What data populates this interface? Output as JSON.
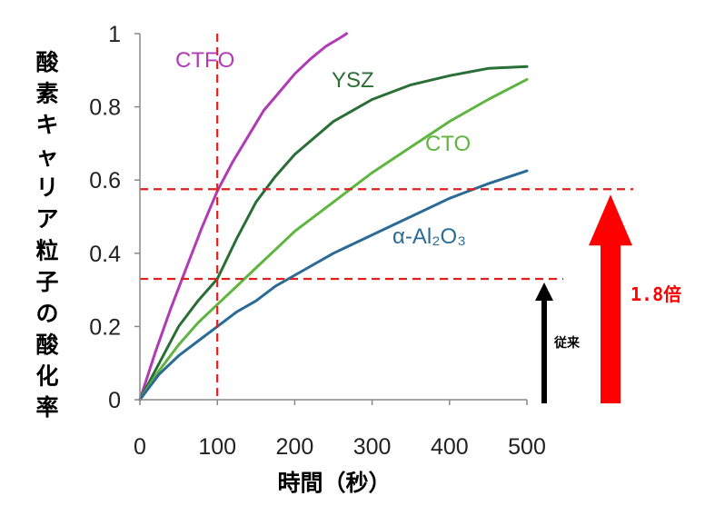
{
  "chart_data": {
    "type": "line",
    "xlabel": "時間（秒）",
    "ylabel": "酸素キャリア粒子の酸化率",
    "xlim": [
      0,
      500
    ],
    "ylim": [
      0,
      1
    ],
    "xticks": [
      "0",
      "100",
      "200",
      "300",
      "400",
      "500"
    ],
    "yticks": [
      "0",
      "0.2",
      "0.4",
      "0.6",
      "0.8",
      "1"
    ],
    "grid": false,
    "series": [
      {
        "name": "CTFO",
        "color": "#b03bb5",
        "x": [
          0,
          20,
          40,
          60,
          80,
          100,
          120,
          140,
          160,
          180,
          200,
          220,
          240,
          260,
          267
        ],
        "y": [
          0,
          0.13,
          0.25,
          0.36,
          0.47,
          0.57,
          0.65,
          0.72,
          0.79,
          0.84,
          0.89,
          0.93,
          0.965,
          0.99,
          1.0
        ]
      },
      {
        "name": "YSZ",
        "color": "#2a6e36",
        "x": [
          0,
          25,
          50,
          75,
          100,
          125,
          150,
          175,
          200,
          250,
          300,
          350,
          400,
          450,
          500
        ],
        "y": [
          0,
          0.1,
          0.2,
          0.27,
          0.33,
          0.44,
          0.54,
          0.61,
          0.67,
          0.76,
          0.82,
          0.86,
          0.885,
          0.905,
          0.91
        ]
      },
      {
        "name": "CTO",
        "color": "#5fb540",
        "x": [
          0,
          25,
          50,
          75,
          100,
          125,
          150,
          175,
          200,
          250,
          300,
          350,
          400,
          450,
          500
        ],
        "y": [
          0,
          0.08,
          0.15,
          0.21,
          0.26,
          0.31,
          0.36,
          0.41,
          0.46,
          0.54,
          0.62,
          0.69,
          0.76,
          0.82,
          0.875
        ]
      },
      {
        "name": "α-Al₂O₃",
        "color": "#2a6b95",
        "x": [
          0,
          25,
          50,
          75,
          100,
          125,
          150,
          175,
          200,
          250,
          300,
          350,
          400,
          450,
          500
        ],
        "y": [
          0,
          0.07,
          0.12,
          0.16,
          0.2,
          0.24,
          0.27,
          0.31,
          0.34,
          0.4,
          0.45,
          0.5,
          0.55,
          0.59,
          0.625
        ]
      }
    ],
    "reference_lines": {
      "vertical_x": 100,
      "horizontal_y": [
        0.575,
        0.33
      ],
      "color": "#e0201f"
    },
    "annotations": {
      "conventional_label": "従来",
      "conventional_color": "#000000",
      "improvement_label": "1.8倍",
      "improvement_color": "#ff0000"
    }
  }
}
